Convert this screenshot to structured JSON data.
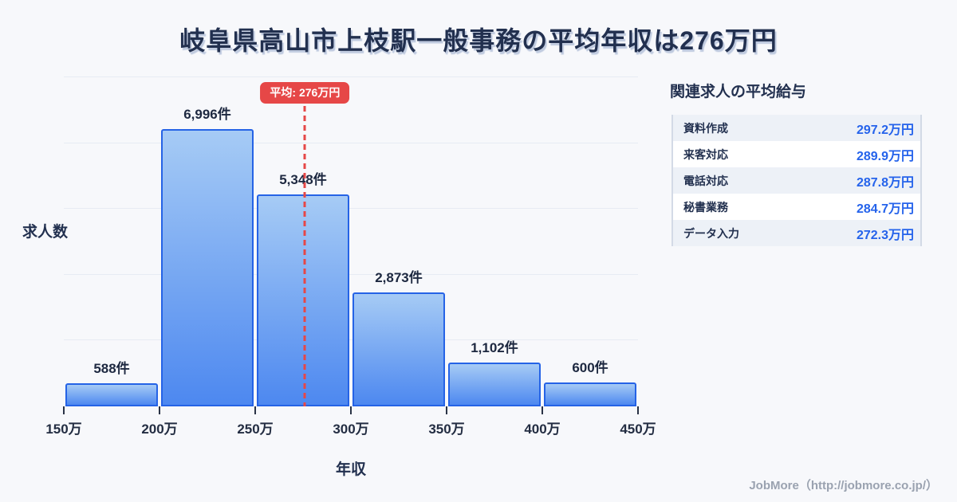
{
  "title": "岐阜県高山市上枝駅一般事務の平均年収は276万円",
  "chart_data": {
    "type": "bar",
    "subtype": "histogram",
    "xlabel": "年収",
    "ylabel": "求人数",
    "bin_labels": [
      "150万",
      "200万",
      "250万",
      "300万",
      "350万",
      "400万",
      "450万"
    ],
    "categories": [
      "150万-200万",
      "200万-250万",
      "250万-300万",
      "300万-350万",
      "350万-400万",
      "400万-450万"
    ],
    "values": [
      588,
      6996,
      5348,
      2873,
      1102,
      600
    ],
    "value_labels": [
      "588件",
      "6,996件",
      "5,348件",
      "2,873件",
      "1,102件",
      "600件"
    ],
    "average": {
      "value": 276,
      "label": "平均: 276万円"
    },
    "xlim": [
      150,
      450
    ],
    "ylim": [
      0,
      8300
    ],
    "grid": true,
    "gridline_count": 5,
    "legend": false
  },
  "related_jobs": {
    "title": "関連求人の平均給与",
    "rows": [
      {
        "label": "資料作成",
        "value": "297.2万円"
      },
      {
        "label": "来客対応",
        "value": "289.9万円"
      },
      {
        "label": "電話対応",
        "value": "287.8万円"
      },
      {
        "label": "秘書業務",
        "value": "284.7万円"
      },
      {
        "label": "データ入力",
        "value": "272.3万円"
      }
    ]
  },
  "footer": {
    "credit": "JobMore（http://jobmore.co.jp/）"
  },
  "colors": {
    "background": "#f7f8fb",
    "title_navy": "#22304f",
    "bar_gradient_top": "#a6cbf5",
    "bar_gradient_bottom": "#4d88f0",
    "bar_border": "#2563e6",
    "average_red": "#e64747",
    "accent_blue": "#2563eb"
  }
}
